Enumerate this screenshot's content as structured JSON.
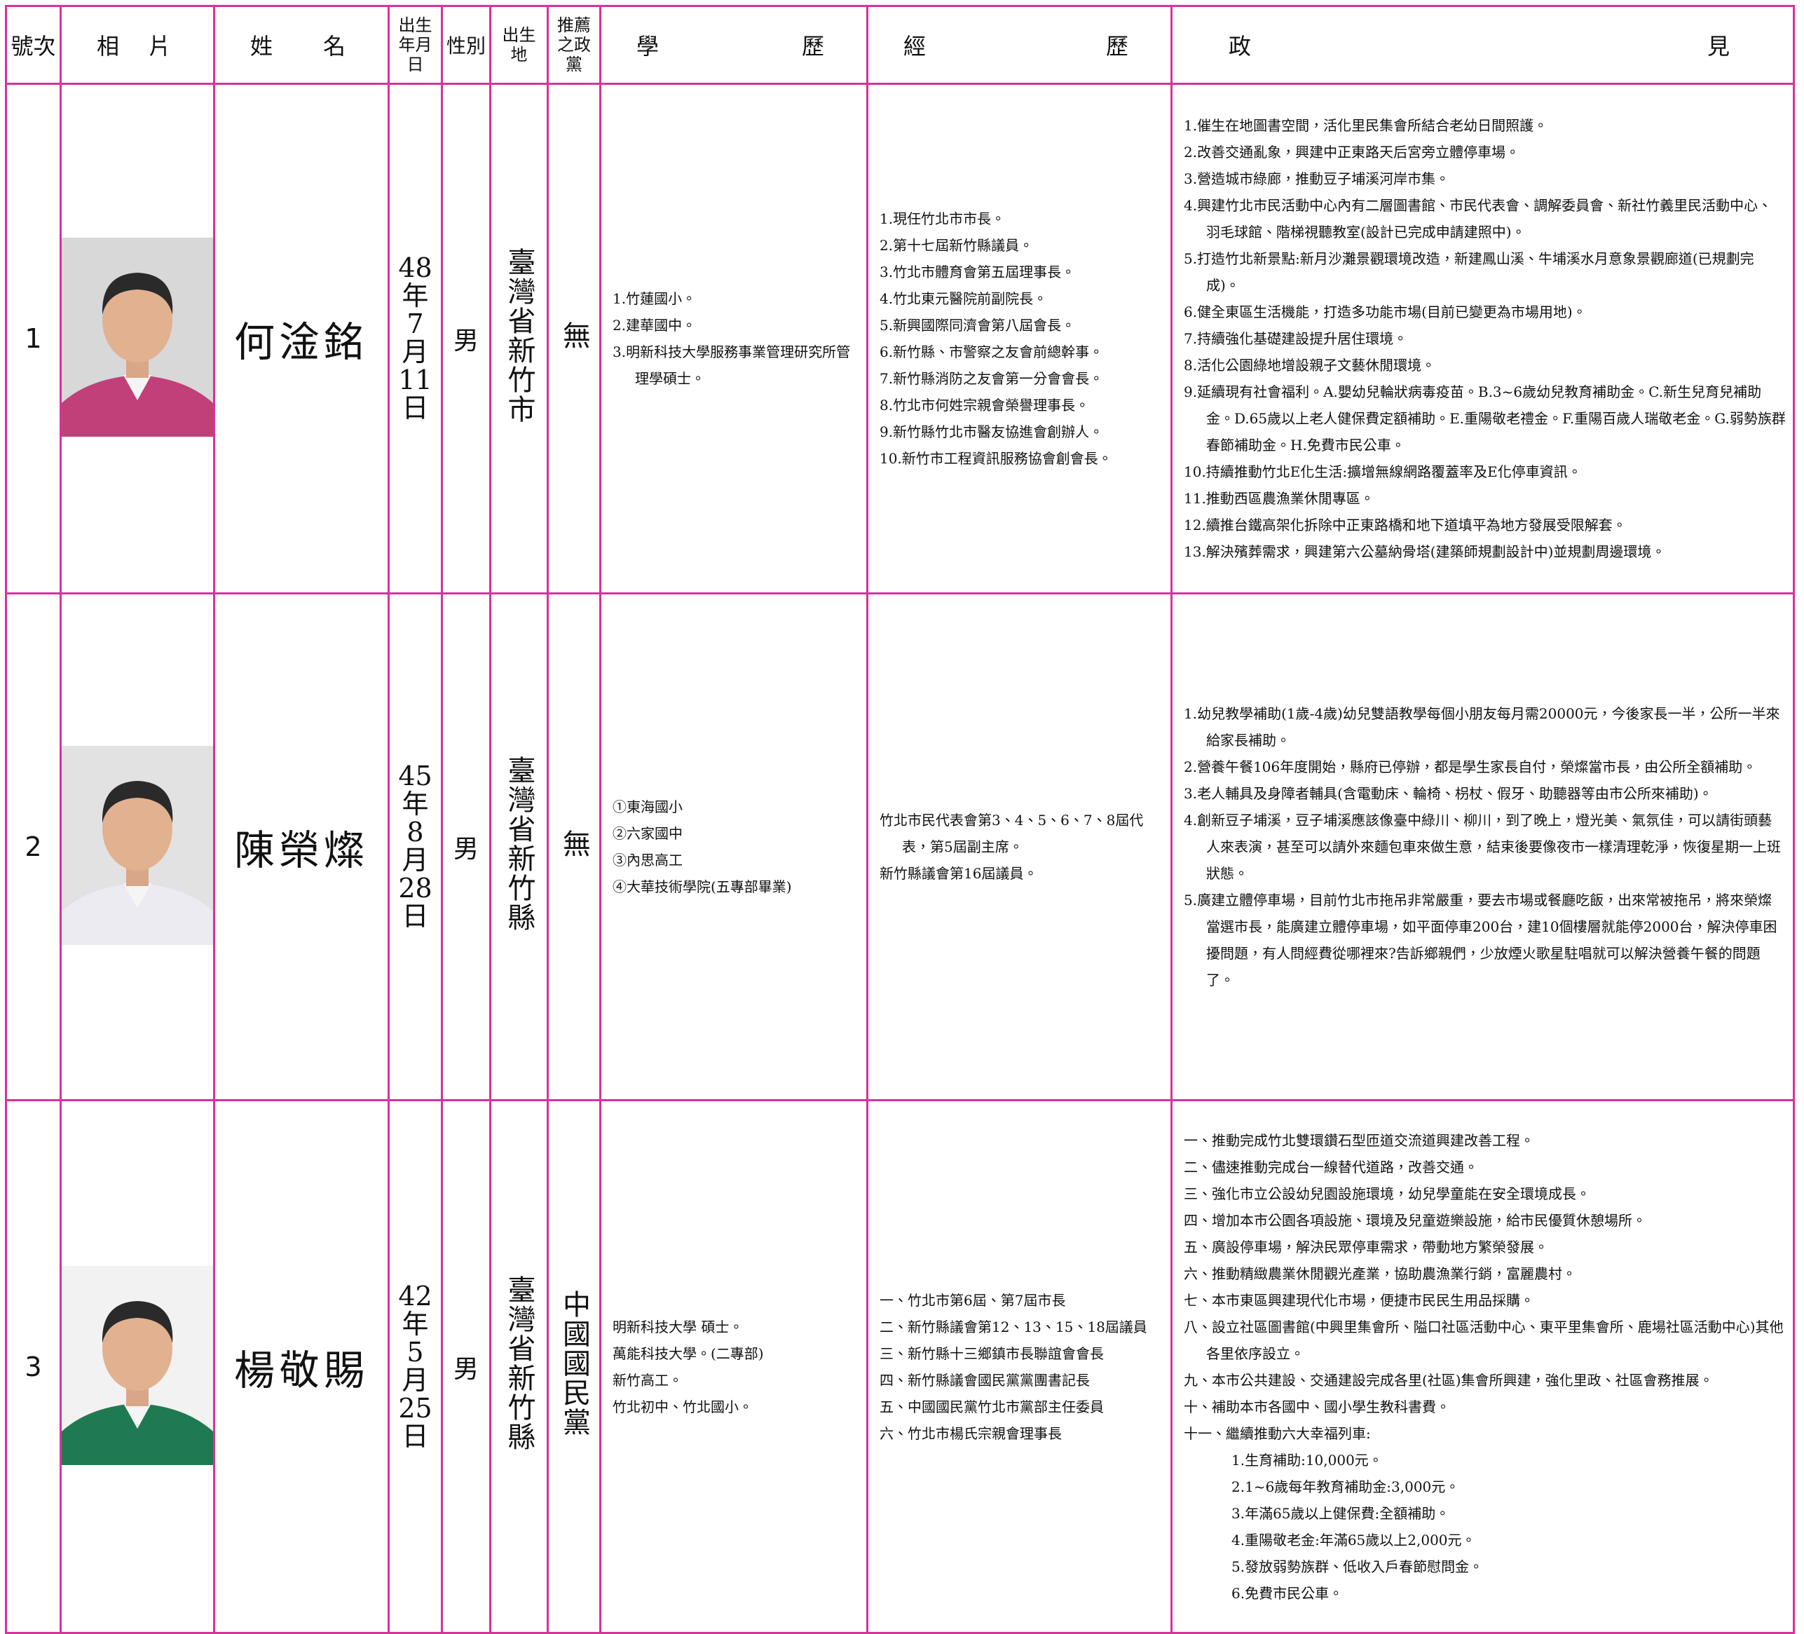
{
  "header": {
    "number": "號次",
    "photo": "相片",
    "name": "姓名",
    "birth_date": "出生年月日",
    "gender": "性別",
    "birthplace": "出生地",
    "party": "推薦之政黨",
    "education": "學歷",
    "experience": "經歷",
    "platform": "政見"
  },
  "candidates": [
    {
      "number": "1",
      "name": "何淦銘",
      "birth_date": "48年7月11日",
      "gender": "男",
      "birthplace": "臺灣省新竹市",
      "party": "無",
      "education": [
        "1.竹蓮國小。",
        "2.建華國中。",
        "3.明新科技大學服務事業管理研究所管理學碩士。"
      ],
      "experience": [
        "1.現任竹北市市長。",
        "2.第十七屆新竹縣議員。",
        "3.竹北市體育會第五屆理事長。",
        "4.竹北東元醫院前副院長。",
        "5.新興國際同濟會第八屆會長。",
        "6.新竹縣、市警察之友會前總幹事。",
        "7.新竹縣消防之友會第一分會會長。",
        "8.竹北市何姓宗親會榮譽理事長。",
        "9.新竹縣竹北市醫友協進會創辦人。",
        "10.新竹市工程資訊服務協會創會長。"
      ],
      "platform": [
        "1.催生在地圖書空間，活化里民集會所結合老幼日間照護。",
        "2.改善交通亂象，興建中正東路天后宮旁立體停車場。",
        "3.營造城市綠廊，推動豆子埔溪河岸市集。",
        "4.興建竹北市民活動中心內有二層圖書館、市民代表會、調解委員會、新社竹義里民活動中心、羽毛球館、階梯視聽教室(設計已完成申請建照中)。",
        "5.打造竹北新景點:新月沙灘景觀環境改造，新建鳳山溪、牛埔溪水月意象景觀廊道(已規劃完成)。",
        "6.健全東區生活機能，打造多功能市場(目前已變更為市場用地)。",
        "7.持續強化基礎建設提升居住環境。",
        "8.活化公園綠地增設親子文藝休閒環境。",
        "9.延續現有社會福利。A.嬰幼兒輪狀病毒疫苗。B.3~6歲幼兒教育補助金。C.新生兒育兒補助金。D.65歲以上老人健保費定額補助。E.重陽敬老禮金。F.重陽百歲人瑞敬老金。G.弱勢族群春節補助金。H.免費市民公車。",
        "10.持續推動竹北E化生活:擴增無線網路覆蓋率及E化停車資訊。",
        "11.推動西區農漁業休閒專區。",
        "12.續推台鐵高架化拆除中正東路橋和地下道填平為地方發展受限解套。",
        "13.解決殯葬需求，興建第六公墓納骨塔(建築師規劃設計中)並規劃周邊環境。"
      ]
    },
    {
      "number": "2",
      "name": "陳榮燦",
      "birth_date": "45年8月28日",
      "gender": "男",
      "birthplace": "臺灣省新竹縣",
      "party": "無",
      "education": [
        "①東海國小",
        "②六家國中",
        "③內思高工",
        "④大華技術學院(五專部畢業)"
      ],
      "experience": [
        "竹北市民代表會第3、4、5、6、7、8屆代表，第5屆副主席。",
        "新竹縣議會第16屆議員。"
      ],
      "platform": [
        "1.幼兒教學補助(1歲-4歲)幼兒雙語教學每個小朋友每月需20000元，今後家長一半，公所一半來給家長補助。",
        "2.營養午餐106年度開始，縣府已停辦，都是學生家長自付，榮燦當市長，由公所全額補助。",
        "3.老人輔具及身障者輔具(含電動床、輪椅、枴杖、假牙、助聽器等由市公所來補助)。",
        "4.創新豆子埔溪，豆子埔溪應該像臺中綠川、柳川，到了晚上，燈光美、氣氛佳，可以請街頭藝人來表演，甚至可以請外來麵包車來做生意，結束後要像夜市一樣清理乾淨，恢復星期一上班狀態。",
        "5.廣建立體停車場，目前竹北市拖吊非常嚴重，要去市場或餐廳吃飯，出來常被拖吊，將來榮燦當選市長，能廣建立體停車場，如平面停車200台，建10個樓層就能停2000台，解決停車困擾問題，有人問經費從哪裡來?告訴鄉親們，少放煙火歌星駐唱就可以解決營養午餐的問題了。"
      ]
    },
    {
      "number": "3",
      "name": "楊敬賜",
      "birth_date": "42年5月25日",
      "gender": "男",
      "birthplace": "臺灣省新竹縣",
      "party": "中國國民黨",
      "education": [
        "明新科技大學 碩士。",
        "萬能科技大學。(二專部)",
        "新竹高工。",
        "竹北初中、竹北國小。"
      ],
      "experience": [
        "一、竹北市第6屆、第7屆市長",
        "二、新竹縣議會第12、13、15、18屆議員",
        "三、新竹縣十三鄉鎮市長聯誼會會長",
        "四、新竹縣議會國民黨黨團書記長",
        "五、中國國民黨竹北市黨部主任委員",
        "六、竹北市楊氏宗親會理事長"
      ],
      "platform": [
        "一、推動完成竹北雙環鑽石型匝道交流道興建改善工程。",
        "二、儘速推動完成台一線替代道路，改善交通。",
        "三、強化市立公設幼兒園設施環境，幼兒學童能在安全環境成長。",
        "四、增加本市公園各項設施、環境及兒童遊樂設施，給市民優質休憩場所。",
        "五、廣設停車場，解決民眾停車需求，帶動地方繁榮發展。",
        "六、推動精緻農業休閒觀光產業，協助農漁業行銷，富麗農村。",
        "七、本市東區興建現代化市場，便捷市民民生用品採購。",
        "八、設立社區圖書館(中興里集會所、隘口社區活動中心、東平里集會所、鹿場社區活動中心)其他各里依序設立。",
        "九、本市公共建設、交通建設完成各里(社區)集會所興建，強化里政、社區會務推展。",
        "十、補助本市各國中、國小學生教科書費。",
        "十一、繼續推動六大幸福列車:"
      ],
      "platform_sub": [
        "1.生育補助:10,000元。",
        "2.1~6歲每年教育補助金:3,000元。",
        "3.年滿65歲以上健保費:全額補助。",
        "4.重陽敬老金:年滿65歲以上2,000元。",
        "5.發放弱勢族群、低收入戶春節慰問金。",
        "6.免費市民公車。"
      ]
    }
  ]
}
